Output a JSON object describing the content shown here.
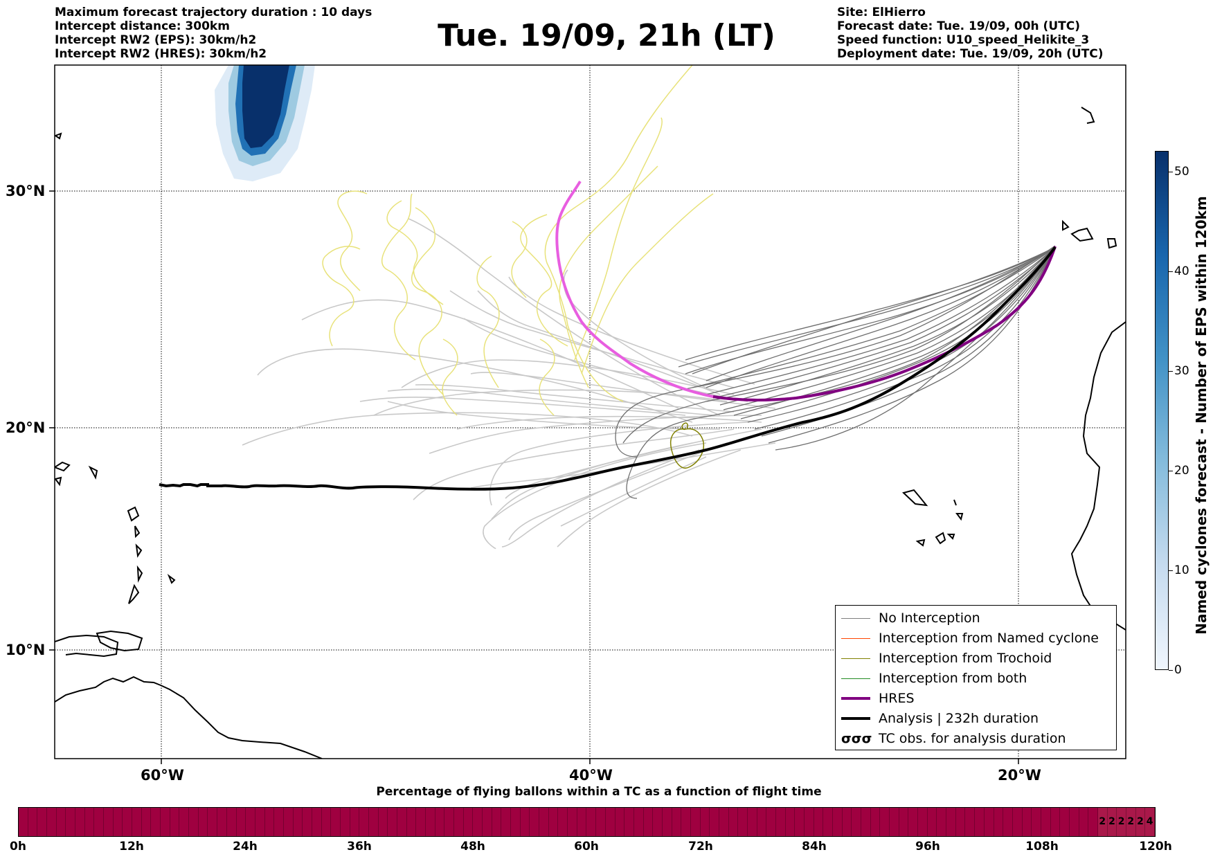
{
  "header": {
    "title": "Tue. 19/09, 21h (LT)",
    "left_lines": [
      "Maximum forecast trajectory duration : 10 days",
      "Intercept distance: 300km",
      "Intercept RW2 (EPS):  30km/h2",
      "Intercept RW2 (HRES): 30km/h2"
    ],
    "right_lines": [
      "Site: ElHierro",
      "Forecast date: Tue. 19/09, 00h (UTC)",
      "Speed function: U10_speed_Helikite_3",
      "Deployment date: Tue. 19/09, 20h (UTC)"
    ]
  },
  "map": {
    "lon_labels": [
      "60°W",
      "40°W",
      "20°W"
    ],
    "lat_labels": [
      "30°N",
      "20°N",
      "10°N"
    ]
  },
  "colorbar": {
    "label": "Named cyclones forecast - Number of EPS within 120km",
    "ticks": [
      "0",
      "10",
      "20",
      "30",
      "40",
      "50"
    ],
    "range": [
      0,
      52
    ],
    "colors": [
      "#f0f6fd",
      "#08306b"
    ]
  },
  "legend": {
    "items": [
      {
        "label": "No Interception",
        "color": "#7f7f7f"
      },
      {
        "label": "Interception from Named cyclone",
        "color": "#ff4500"
      },
      {
        "label": "Interception from Trochoid",
        "color": "#808000"
      },
      {
        "label": "Interception from both",
        "color": "#228b22"
      },
      {
        "label": "HRES",
        "color": "#800080"
      },
      {
        "label": "Analysis | 232h duration",
        "color": "#000000"
      },
      {
        "label": "TC obs. for analysis duration",
        "color": "#000000",
        "glyph": "σσσ"
      }
    ]
  },
  "percentage_bar": {
    "title": "Percentage of flying ballons within a TC as a function of flight time",
    "time_labels": [
      "0h",
      "12h",
      "24h",
      "36h",
      "48h",
      "60h",
      "72h",
      "84h",
      "96h",
      "108h",
      "120h"
    ],
    "hour_values": [
      "2",
      "2",
      "2",
      "2",
      "2",
      "4"
    ],
    "color": "#9f0040"
  }
}
